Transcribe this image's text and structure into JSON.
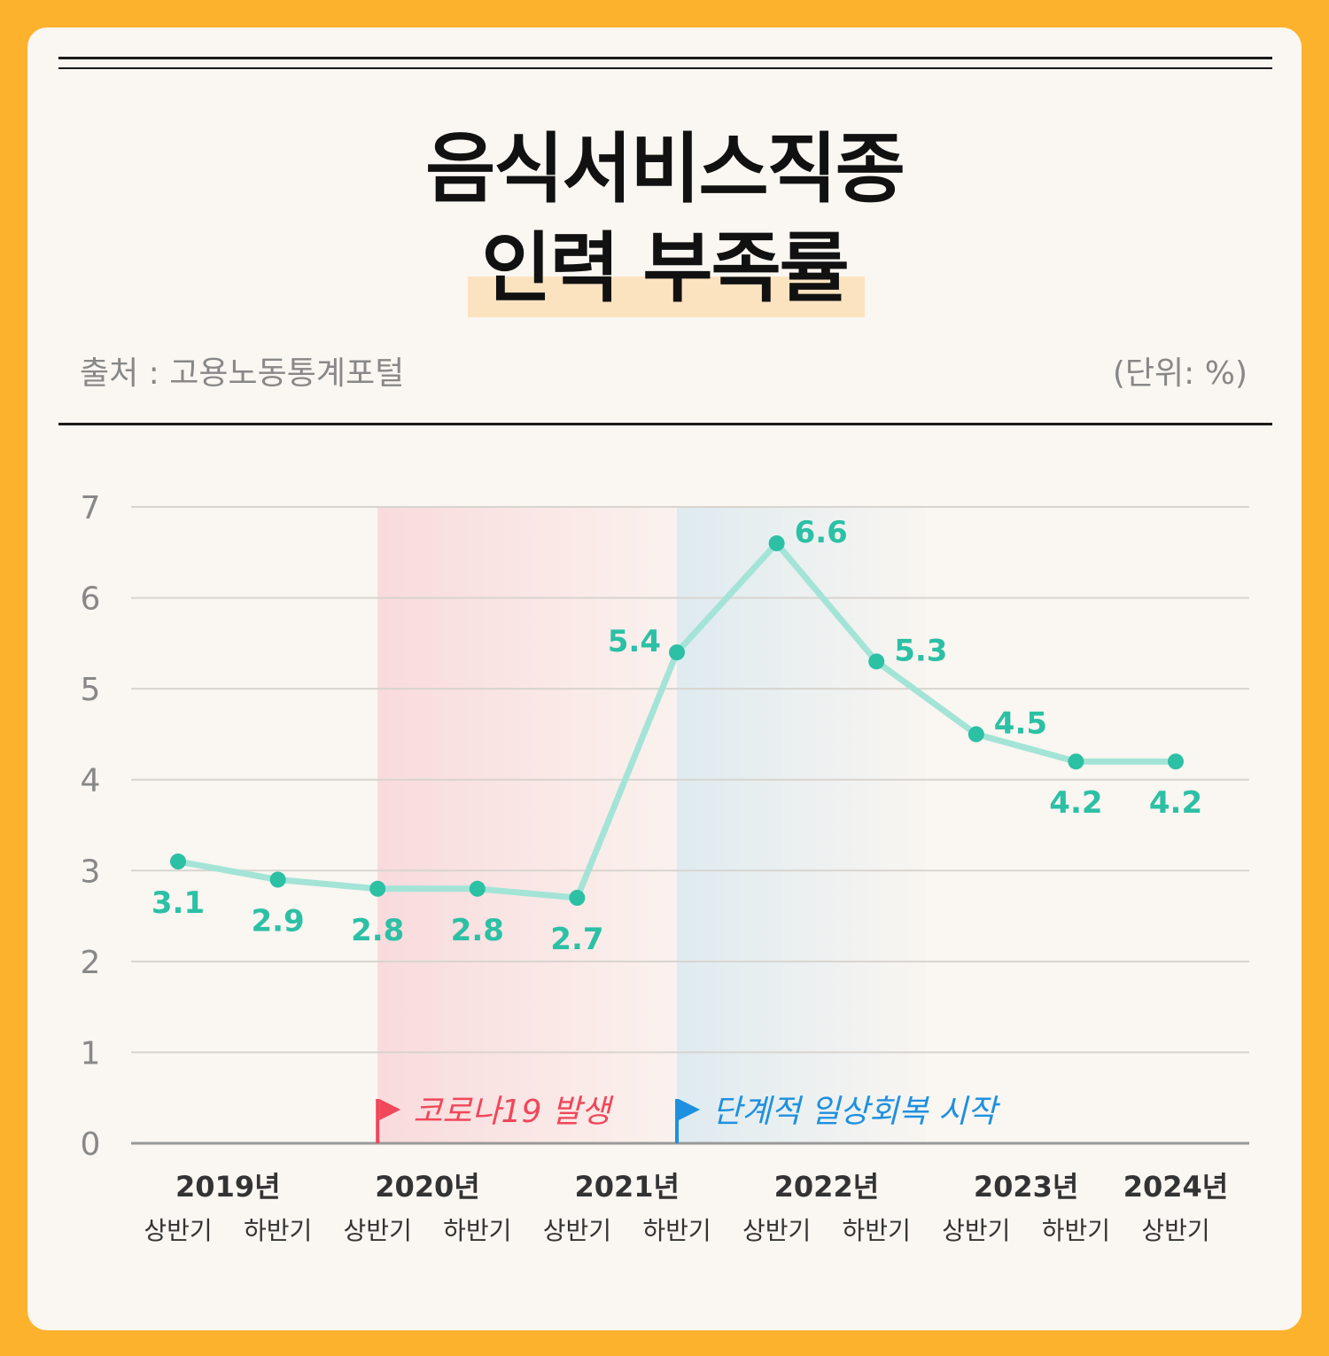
{
  "header": {
    "title_line1": "음식서비스직종",
    "title_line2": "인력 부족률",
    "source": "출처 : 고용노동통계포털",
    "unit": "(단위: %)"
  },
  "colors": {
    "line": "#A3E4D7",
    "point": "#2CC0A5",
    "label": "#2CC0A5",
    "covid_band": "#F9D9DC",
    "recovery_band": "#DDEAF0",
    "covid_flag": "#F0475A",
    "recovery_flag": "#1E90E0"
  },
  "chart_data": {
    "type": "line",
    "title": "음식서비스직종 인력 부족률",
    "xlabel": "",
    "ylabel": "",
    "unit": "%",
    "ylim": [
      0,
      7
    ],
    "yticks": [
      0,
      1,
      2,
      3,
      4,
      5,
      6,
      7
    ],
    "grid": true,
    "categories": [
      "2019년 상반기",
      "2019년 하반기",
      "2020년 상반기",
      "2020년 하반기",
      "2021년 상반기",
      "2021년 하반기",
      "2022년 상반기",
      "2022년 하반기",
      "2023년 상반기",
      "2023년 하반기",
      "2024년 상반기"
    ],
    "halves": [
      "상반기",
      "하반기",
      "상반기",
      "하반기",
      "상반기",
      "하반기",
      "상반기",
      "하반기",
      "상반기",
      "하반기",
      "상반기"
    ],
    "years": [
      {
        "label": "2019년",
        "from": 0,
        "to": 1
      },
      {
        "label": "2020년",
        "from": 2,
        "to": 3
      },
      {
        "label": "2021년",
        "from": 4,
        "to": 5
      },
      {
        "label": "2022년",
        "from": 6,
        "to": 7
      },
      {
        "label": "2023년",
        "from": 8,
        "to": 9
      },
      {
        "label": "2024년",
        "from": 10,
        "to": 10
      }
    ],
    "values": [
      3.1,
      2.9,
      2.8,
      2.8,
      2.7,
      5.4,
      6.6,
      5.3,
      4.5,
      4.2,
      4.2
    ],
    "data_labels": [
      "3.1",
      "2.9",
      "2.8",
      "2.8",
      "2.7",
      "5.4",
      "6.6",
      "5.3",
      "4.5",
      "4.2",
      "4.2"
    ],
    "label_position": [
      "below",
      "below",
      "below",
      "below",
      "below",
      "left",
      "right",
      "right",
      "right",
      "below",
      "below"
    ],
    "annotations": [
      {
        "text": "코로나19 발생",
        "start_index": 2,
        "end_index": 5,
        "color": "#F0475A",
        "band": "#F9D9DC"
      },
      {
        "text": "단계적 일상회복 시작",
        "start_index": 5,
        "end_index": 7.5,
        "color": "#1E90E0",
        "band": "#DDEAF0"
      }
    ]
  }
}
